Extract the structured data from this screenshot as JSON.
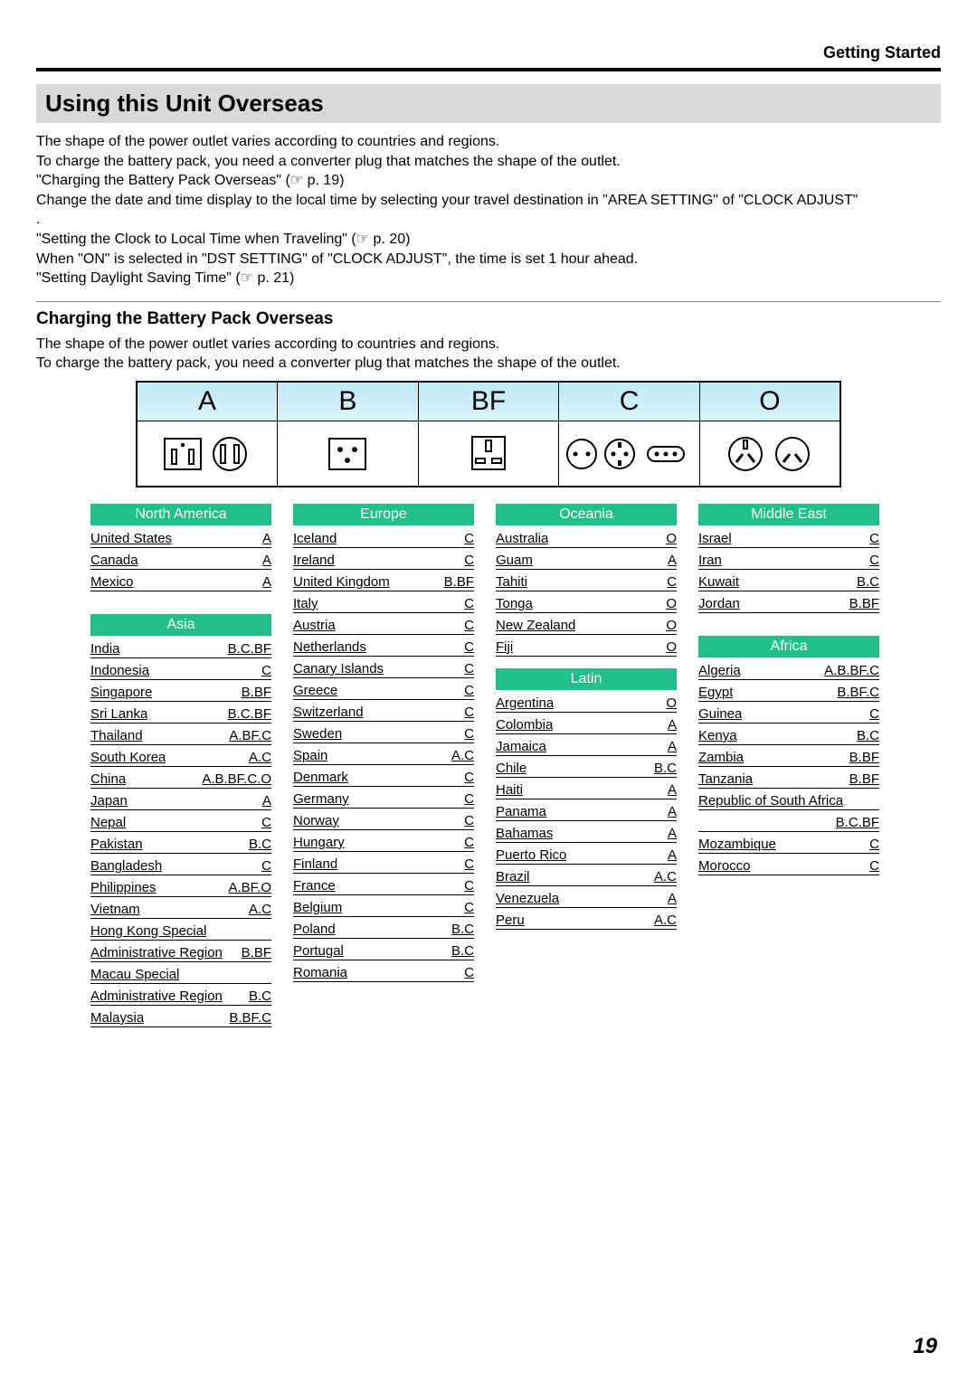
{
  "header": "Getting Started",
  "title": "Using this Unit Overseas",
  "intro_lines": [
    "The shape of the power outlet varies according to countries and regions.",
    "To charge the battery pack, you need a converter plug that matches the shape of the outlet.",
    "\"Charging the Battery Pack Overseas\" (☞ p. 19)",
    "Change the date and time display to the local time by selecting your travel destination in \"AREA SETTING\" of \"CLOCK ADJUST\"",
    ".",
    "\"Setting the Clock to Local Time when Traveling\" (☞ p. 20)",
    "When \"ON\" is selected in \"DST SETTING\" of \"CLOCK ADJUST\", the time is set 1 hour ahead.",
    "\"Setting Daylight Saving Time\" (☞ p. 21)"
  ],
  "subheading": "Charging the Battery Pack Overseas",
  "sub_lines": [
    "The shape of the power outlet varies according to countries and regions.",
    "To charge the battery pack, you need a converter plug that matches the shape of the outlet."
  ],
  "plug_types": [
    "A",
    "B",
    "BF",
    "C",
    "O"
  ],
  "colors": {
    "region_bg": "#21c08a",
    "plug_header_gradient_top": "#bfe9f7",
    "plug_header_gradient_bottom": "#d9f3fb"
  },
  "page_number": "19",
  "regions": {
    "north_america": {
      "title": "North America",
      "rows": [
        {
          "c": "United States",
          "p": "A"
        },
        {
          "c": "Canada",
          "p": "A"
        },
        {
          "c": "Mexico",
          "p": "A"
        }
      ]
    },
    "asia": {
      "title": "Asia",
      "rows": [
        {
          "c": "India",
          "p": "B.C.BF"
        },
        {
          "c": "Indonesia",
          "p": "C"
        },
        {
          "c": "Singapore",
          "p": "B.BF"
        },
        {
          "c": "Sri Lanka",
          "p": "B.C.BF"
        },
        {
          "c": "Thailand",
          "p": "A.BF.C"
        },
        {
          "c": "South Korea",
          "p": "A.C"
        },
        {
          "c": "China",
          "p": "A.B.BF.C.O"
        },
        {
          "c": "Japan",
          "p": "A"
        },
        {
          "c": "Nepal",
          "p": "C"
        },
        {
          "c": "Pakistan",
          "p": "B.C"
        },
        {
          "c": "Bangladesh",
          "p": "C"
        },
        {
          "c": "Philippines",
          "p": "A.BF.O"
        },
        {
          "c": "Vietnam",
          "p": "A.C"
        },
        {
          "c": "Hong Kong Special",
          "p": ""
        },
        {
          "c": "Administrative Region",
          "p": "B.BF"
        },
        {
          "c": "Macau Special",
          "p": ""
        },
        {
          "c": "Administrative Region",
          "p": "B.C"
        },
        {
          "c": "Malaysia",
          "p": "B.BF.C"
        }
      ]
    },
    "europe": {
      "title": "Europe",
      "rows": [
        {
          "c": "Iceland",
          "p": "C"
        },
        {
          "c": "Ireland",
          "p": "C"
        },
        {
          "c": "United Kingdom",
          "p": "B.BF"
        },
        {
          "c": "Italy",
          "p": "C"
        },
        {
          "c": "Austria",
          "p": "C"
        },
        {
          "c": "Netherlands",
          "p": "C"
        },
        {
          "c": "Canary Islands",
          "p": "C"
        },
        {
          "c": "Greece",
          "p": "C"
        },
        {
          "c": "Switzerland",
          "p": "C"
        },
        {
          "c": "Sweden",
          "p": "C"
        },
        {
          "c": "Spain",
          "p": "A.C"
        },
        {
          "c": "Denmark",
          "p": "C"
        },
        {
          "c": "Germany",
          "p": "C"
        },
        {
          "c": "Norway",
          "p": "C"
        },
        {
          "c": "Hungary",
          "p": "C"
        },
        {
          "c": "Finland",
          "p": "C"
        },
        {
          "c": "France",
          "p": "C"
        },
        {
          "c": "Belgium",
          "p": "C"
        },
        {
          "c": "Poland",
          "p": "B.C"
        },
        {
          "c": "Portugal",
          "p": "B.C"
        },
        {
          "c": "Romania",
          "p": "C"
        }
      ]
    },
    "oceania": {
      "title": "Oceania",
      "rows": [
        {
          "c": "Australia",
          "p": "O"
        },
        {
          "c": "Guam",
          "p": "A"
        },
        {
          "c": "Tahiti",
          "p": "C"
        },
        {
          "c": "Tonga",
          "p": "O"
        },
        {
          "c": "New Zealand",
          "p": "O"
        },
        {
          "c": "Fiji",
          "p": "O"
        }
      ]
    },
    "latin": {
      "title": "Latin",
      "rows": [
        {
          "c": "Argentina",
          "p": "O"
        },
        {
          "c": "Colombia",
          "p": "A"
        },
        {
          "c": "Jamaica",
          "p": "A"
        },
        {
          "c": "Chile",
          "p": "B.C"
        },
        {
          "c": "Haiti",
          "p": "A"
        },
        {
          "c": "Panama",
          "p": "A"
        },
        {
          "c": "Bahamas",
          "p": "A"
        },
        {
          "c": "Puerto Rico",
          "p": "A"
        },
        {
          "c": "Brazil",
          "p": "A.C"
        },
        {
          "c": "Venezuela",
          "p": "A"
        },
        {
          "c": "Peru",
          "p": "A.C"
        }
      ]
    },
    "middle_east": {
      "title": "Middle East",
      "rows": [
        {
          "c": "Israel",
          "p": "C"
        },
        {
          "c": "Iran",
          "p": "C"
        },
        {
          "c": "Kuwait",
          "p": "B.C"
        },
        {
          "c": "Jordan",
          "p": "B.BF"
        }
      ]
    },
    "africa": {
      "title": "Africa",
      "rows": [
        {
          "c": "Algeria",
          "p": "A.B.BF.C"
        },
        {
          "c": "Egypt",
          "p": "B.BF.C"
        },
        {
          "c": "Guinea",
          "p": "C"
        },
        {
          "c": "Kenya",
          "p": "B.C"
        },
        {
          "c": "Zambia",
          "p": "B.BF"
        },
        {
          "c": "Tanzania",
          "p": "B.BF"
        },
        {
          "c": "Republic of South Africa",
          "p": ""
        },
        {
          "c": "",
          "p": "B.C.BF"
        },
        {
          "c": "Mozambique",
          "p": "C"
        },
        {
          "c": "Morocco",
          "p": "C"
        }
      ]
    }
  }
}
